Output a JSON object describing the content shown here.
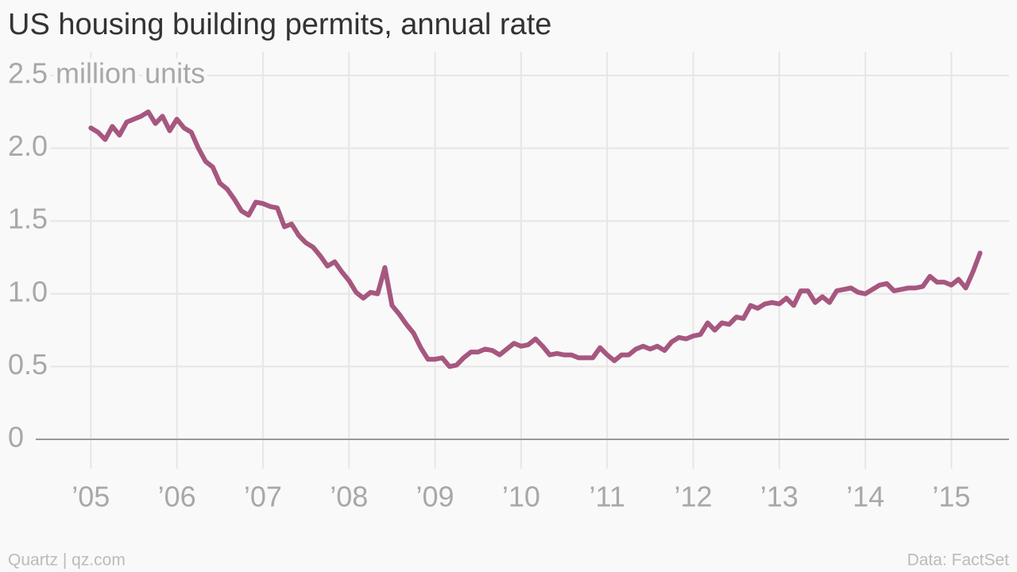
{
  "chart_data": {
    "type": "line",
    "title": "US housing building permits, annual rate",
    "credit": "Quartz | qz.com",
    "source": "Data: FactSet",
    "color": "#a6577f",
    "grid": true,
    "x": [
      2005,
      2005.083,
      2005.167,
      2005.25,
      2005.333,
      2005.417,
      2005.5,
      2005.583,
      2005.667,
      2005.75,
      2005.833,
      2005.917,
      2006,
      2006.083,
      2006.167,
      2006.25,
      2006.333,
      2006.417,
      2006.5,
      2006.583,
      2006.667,
      2006.75,
      2006.833,
      2006.917,
      2007,
      2007.083,
      2007.167,
      2007.25,
      2007.333,
      2007.417,
      2007.5,
      2007.583,
      2007.667,
      2007.75,
      2007.833,
      2007.917,
      2008,
      2008.083,
      2008.167,
      2008.25,
      2008.333,
      2008.417,
      2008.5,
      2008.583,
      2008.667,
      2008.75,
      2008.833,
      2008.917,
      2009,
      2009.083,
      2009.167,
      2009.25,
      2009.333,
      2009.417,
      2009.5,
      2009.583,
      2009.667,
      2009.75,
      2009.833,
      2009.917,
      2010,
      2010.083,
      2010.167,
      2010.25,
      2010.333,
      2010.417,
      2010.5,
      2010.583,
      2010.667,
      2010.75,
      2010.833,
      2010.917,
      2011,
      2011.083,
      2011.167,
      2011.25,
      2011.333,
      2011.417,
      2011.5,
      2011.583,
      2011.667,
      2011.75,
      2011.833,
      2011.917,
      2012,
      2012.083,
      2012.167,
      2012.25,
      2012.333,
      2012.417,
      2012.5,
      2012.583,
      2012.667,
      2012.75,
      2012.833,
      2012.917,
      2013,
      2013.083,
      2013.167,
      2013.25,
      2013.333,
      2013.417,
      2013.5,
      2013.583,
      2013.667,
      2013.75,
      2013.833,
      2013.917,
      2014,
      2014.083,
      2014.167,
      2014.25,
      2014.333,
      2014.417,
      2014.5,
      2014.583,
      2014.667,
      2014.75,
      2014.833,
      2014.917,
      2015,
      2015.083,
      2015.167,
      2015.25,
      2015.333
    ],
    "values": [
      2.14,
      2.11,
      2.06,
      2.15,
      2.09,
      2.18,
      2.2,
      2.22,
      2.25,
      2.17,
      2.22,
      2.12,
      2.2,
      2.14,
      2.11,
      2.0,
      1.91,
      1.87,
      1.76,
      1.72,
      1.65,
      1.57,
      1.54,
      1.63,
      1.62,
      1.6,
      1.59,
      1.46,
      1.48,
      1.4,
      1.35,
      1.32,
      1.26,
      1.19,
      1.22,
      1.15,
      1.09,
      1.01,
      0.97,
      1.01,
      1.0,
      1.18,
      0.92,
      0.86,
      0.79,
      0.73,
      0.63,
      0.55,
      0.55,
      0.56,
      0.5,
      0.51,
      0.56,
      0.6,
      0.6,
      0.62,
      0.61,
      0.58,
      0.62,
      0.66,
      0.64,
      0.65,
      0.69,
      0.64,
      0.58,
      0.59,
      0.58,
      0.58,
      0.56,
      0.56,
      0.56,
      0.63,
      0.58,
      0.54,
      0.58,
      0.58,
      0.62,
      0.64,
      0.62,
      0.64,
      0.61,
      0.67,
      0.7,
      0.69,
      0.71,
      0.72,
      0.8,
      0.75,
      0.8,
      0.79,
      0.84,
      0.83,
      0.92,
      0.9,
      0.93,
      0.94,
      0.93,
      0.97,
      0.92,
      1.02,
      1.02,
      0.94,
      0.98,
      0.94,
      1.02,
      1.03,
      1.04,
      1.01,
      1.0,
      1.03,
      1.06,
      1.07,
      1.02,
      1.03,
      1.04,
      1.04,
      1.05,
      1.12,
      1.08,
      1.08,
      1.06,
      1.1,
      1.04,
      1.15,
      1.28
    ],
    "xlim": [
      2004.36,
      2015.67
    ],
    "xticks": [
      {
        "value": 2005,
        "label": "’05"
      },
      {
        "value": 2006,
        "label": "’06"
      },
      {
        "value": 2007,
        "label": "’07"
      },
      {
        "value": 2008,
        "label": "’08"
      },
      {
        "value": 2009,
        "label": "’09"
      },
      {
        "value": 2010,
        "label": "’10"
      },
      {
        "value": 2011,
        "label": "’11"
      },
      {
        "value": 2012,
        "label": "’12"
      },
      {
        "value": 2013,
        "label": "’13"
      },
      {
        "value": 2014,
        "label": "’14"
      },
      {
        "value": 2015,
        "label": "’15"
      }
    ],
    "ylim": [
      0,
      2.5
    ],
    "yticks": [
      0,
      0.5,
      {
        "value": 1,
        "label": "1.0"
      },
      {
        "value": 1.5,
        "label": "1.5"
      },
      {
        "value": 2,
        "label": "2.0"
      },
      {
        "value": 2.5,
        "label": "2.5 million units"
      }
    ]
  }
}
